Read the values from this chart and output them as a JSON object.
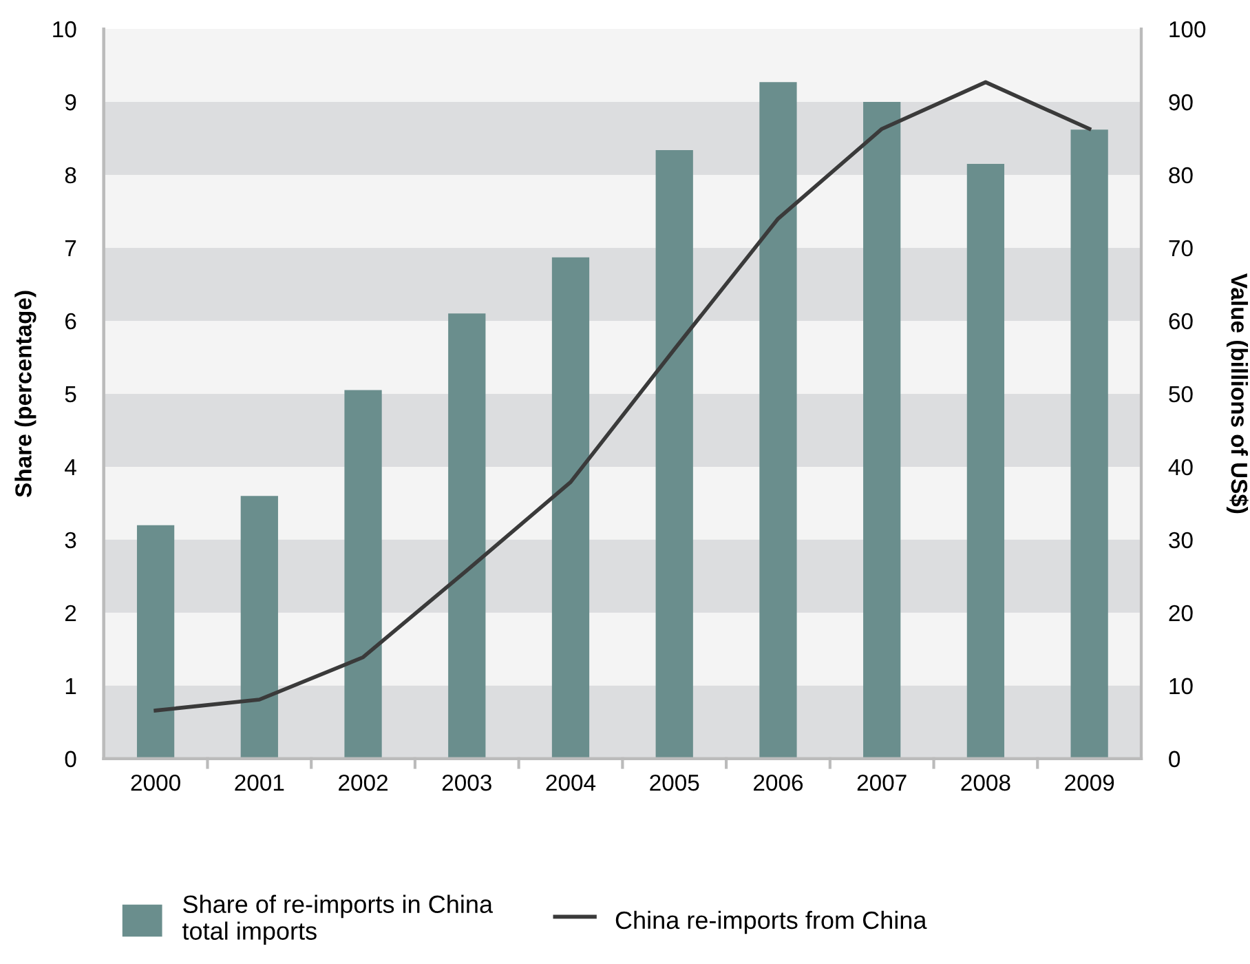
{
  "chart_data": {
    "type": "bar",
    "categories": [
      "2000",
      "2001",
      "2002",
      "2003",
      "2004",
      "2005",
      "2006",
      "2007",
      "2008",
      "2009"
    ],
    "ylabel": "Share (percentage)",
    "y2label": "Value (billions of US$)",
    "series": [
      {
        "name": "Share of re-imports in China\ntotal imports",
        "color": "#6a8e8d",
        "values": [
          3.2,
          3.6,
          5.05,
          6.1,
          6.87,
          8.34,
          9.27,
          9.0,
          8.15,
          8.62
        ]
      },
      {
        "name": "China re-imports from China",
        "type": "line",
        "axis": "y2",
        "color": "#3a3a3a",
        "values": [
          6.6,
          8.1,
          13.9,
          25.8,
          37.9,
          56.1,
          74,
          86.3,
          92.7,
          86.3
        ]
      }
    ],
    "ylim": [
      0,
      10
    ],
    "yticks": [
      0,
      1,
      2,
      3,
      4,
      5,
      6,
      7,
      8,
      9,
      10
    ],
    "y2lim": [
      0,
      100
    ],
    "y2ticks": [
      0,
      10,
      20,
      30,
      40,
      50,
      60,
      70,
      80,
      90,
      100
    ],
    "bands": [
      {
        "axis": "y",
        "from": 0,
        "to": 1,
        "color": "#dcdddf"
      },
      {
        "axis": "y",
        "from": 2,
        "to": 3,
        "color": "#dcdddf"
      },
      {
        "axis": "y",
        "from": 4,
        "to": 5,
        "color": "#dcdddf"
      },
      {
        "axis": "y",
        "from": 6,
        "to": 7,
        "color": "#dcdddf"
      },
      {
        "axis": "y",
        "from": 8,
        "to": 9,
        "color": "#dcdddf"
      }
    ],
    "legend": "bottom",
    "grid": false,
    "marker": "none",
    "line_style": "solid"
  }
}
